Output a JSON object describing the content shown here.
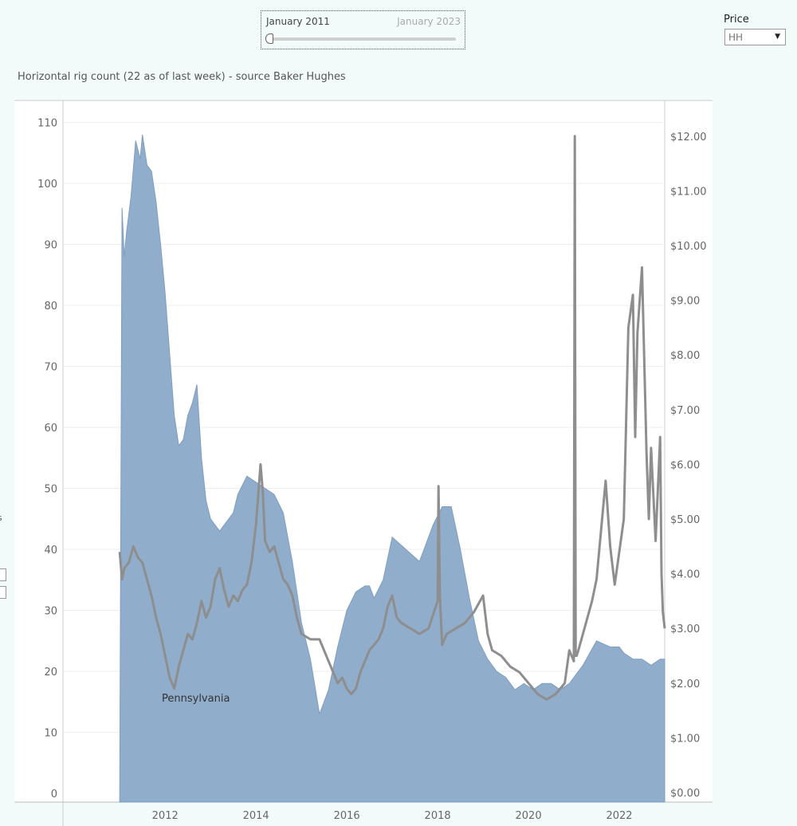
{
  "date_filter": {
    "start_label": "January 2011",
    "end_label": "January 2023"
  },
  "price_filter": {
    "label": "Price",
    "selected": "HH"
  },
  "chart_data": {
    "type": "area",
    "title": "Horizontal rig count (22 as of last week) - source Baker Hughes",
    "annotation": "Pennsylvania",
    "x_ticks": [
      "2012",
      "2014",
      "2016",
      "2018",
      "2020",
      "2022"
    ],
    "x_tick_values": [
      2012,
      2014,
      2016,
      2018,
      2020,
      2022
    ],
    "xlim": [
      2009.75,
      2023.0
    ],
    "y_left": {
      "ticks": [
        "0",
        "10",
        "20",
        "30",
        "40",
        "50",
        "60",
        "70",
        "80",
        "90",
        "100",
        "110"
      ],
      "ylim": [
        0,
        112
      ]
    },
    "y_right": {
      "ticks": [
        "$0.00",
        "$1.00",
        "$2.00",
        "$3.00",
        "$4.00",
        "$5.00",
        "$6.00",
        "$7.00",
        "$8.00",
        "$9.00",
        "$10.00",
        "$11.00",
        "$12.00"
      ],
      "ylim": [
        0,
        12.2
      ]
    },
    "series": [
      {
        "kind": "area",
        "axis": "left",
        "color": "#8aa9c8",
        "x": [
          2011.0,
          2011.05,
          2011.1,
          2011.15,
          2011.25,
          2011.35,
          2011.45,
          2011.5,
          2011.6,
          2011.7,
          2011.8,
          2011.9,
          2012.0,
          2012.1,
          2012.2,
          2012.3,
          2012.4,
          2012.5,
          2012.6,
          2012.7,
          2012.8,
          2012.9,
          2013.0,
          2013.1,
          2013.2,
          2013.3,
          2013.4,
          2013.5,
          2013.6,
          2013.8,
          2014.0,
          2014.2,
          2014.4,
          2014.6,
          2014.8,
          2015.0,
          2015.2,
          2015.4,
          2015.6,
          2015.8,
          2016.0,
          2016.2,
          2016.4,
          2016.5,
          2016.6,
          2016.8,
          2017.0,
          2017.3,
          2017.6,
          2017.9,
          2018.1,
          2018.3,
          2018.5,
          2018.7,
          2018.9,
          2019.1,
          2019.3,
          2019.5,
          2019.7,
          2019.9,
          2020.1,
          2020.3,
          2020.5,
          2020.7,
          2020.9,
          2021.2,
          2021.5,
          2021.8,
          2022.0,
          2022.1,
          2022.3,
          2022.5,
          2022.7,
          2022.9,
          2023.0
        ],
        "values": [
          0,
          96,
          88,
          92,
          98,
          107,
          104,
          108,
          103,
          102,
          97,
          90,
          82,
          72,
          62,
          57,
          58,
          62,
          64,
          67,
          55,
          48,
          45,
          44,
          43,
          44,
          45,
          46,
          49,
          52,
          51,
          50,
          49,
          46,
          38,
          28,
          22,
          13,
          17,
          24,
          30,
          33,
          34,
          34,
          32,
          35,
          42,
          40,
          38,
          44,
          47,
          47,
          40,
          32,
          25,
          22,
          20,
          19,
          17,
          18,
          17,
          18,
          18,
          17,
          18,
          21,
          25,
          24,
          24,
          23,
          22,
          22,
          21,
          22,
          22
        ]
      },
      {
        "kind": "line",
        "axis": "right",
        "color": "#8e8e8e",
        "x": [
          2011.0,
          2011.05,
          2011.1,
          2011.2,
          2011.3,
          2011.4,
          2011.5,
          2011.6,
          2011.7,
          2011.8,
          2011.9,
          2012.0,
          2012.1,
          2012.2,
          2012.3,
          2012.4,
          2012.5,
          2012.6,
          2012.7,
          2012.8,
          2012.9,
          2013.0,
          2013.1,
          2013.2,
          2013.3,
          2013.4,
          2013.5,
          2013.6,
          2013.7,
          2013.8,
          2013.9,
          2014.0,
          2014.1,
          2014.15,
          2014.2,
          2014.3,
          2014.4,
          2014.5,
          2014.6,
          2014.7,
          2014.8,
          2014.9,
          2015.0,
          2015.2,
          2015.4,
          2015.6,
          2015.8,
          2015.9,
          2016.0,
          2016.1,
          2016.2,
          2016.3,
          2016.5,
          2016.7,
          2016.8,
          2016.9,
          2017.0,
          2017.1,
          2017.2,
          2017.4,
          2017.6,
          2017.8,
          2018.0,
          2018.02,
          2018.05,
          2018.1,
          2018.2,
          2018.4,
          2018.6,
          2018.8,
          2019.0,
          2019.1,
          2019.2,
          2019.4,
          2019.6,
          2019.8,
          2020.0,
          2020.2,
          2020.4,
          2020.6,
          2020.8,
          2020.9,
          2021.0,
          2021.02,
          2021.04,
          2021.06,
          2021.1,
          2021.2,
          2021.4,
          2021.5,
          2021.6,
          2021.7,
          2021.8,
          2021.9,
          2022.0,
          2022.1,
          2022.2,
          2022.3,
          2022.35,
          2022.4,
          2022.5,
          2022.6,
          2022.65,
          2022.7,
          2022.8,
          2022.9,
          2022.93,
          2022.96,
          2023.0
        ],
        "values": [
          4.4,
          3.9,
          4.1,
          4.2,
          4.5,
          4.3,
          4.2,
          3.9,
          3.6,
          3.2,
          2.9,
          2.5,
          2.1,
          1.9,
          2.3,
          2.6,
          2.9,
          2.8,
          3.1,
          3.5,
          3.2,
          3.4,
          3.9,
          4.1,
          3.7,
          3.4,
          3.6,
          3.5,
          3.7,
          3.8,
          4.2,
          4.9,
          6.0,
          5.5,
          4.6,
          4.4,
          4.5,
          4.2,
          3.9,
          3.8,
          3.6,
          3.2,
          2.9,
          2.8,
          2.8,
          2.4,
          2.0,
          2.1,
          1.9,
          1.8,
          1.9,
          2.2,
          2.6,
          2.8,
          3.0,
          3.4,
          3.6,
          3.2,
          3.1,
          3.0,
          2.9,
          3.0,
          3.5,
          5.6,
          3.6,
          2.7,
          2.9,
          3.0,
          3.1,
          3.3,
          3.6,
          2.9,
          2.6,
          2.5,
          2.3,
          2.2,
          2.0,
          1.8,
          1.7,
          1.8,
          2.0,
          2.6,
          2.4,
          12.0,
          2.5,
          2.5,
          2.6,
          2.9,
          3.5,
          3.9,
          4.8,
          5.7,
          4.5,
          3.8,
          4.4,
          5.0,
          8.5,
          9.1,
          6.5,
          8.4,
          9.6,
          6.2,
          5.0,
          6.3,
          4.6,
          6.5,
          4.0,
          3.3,
          3.0
        ]
      }
    ]
  }
}
